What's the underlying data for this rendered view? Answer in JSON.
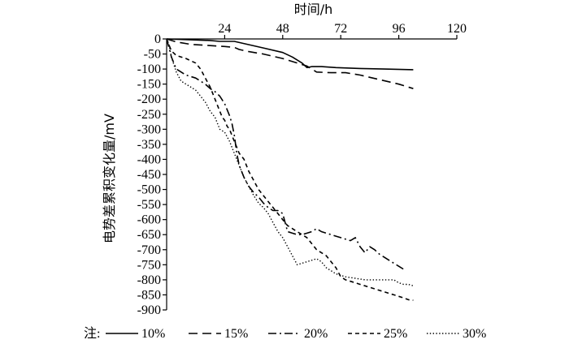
{
  "chart_data": {
    "type": "line",
    "xlabel": "时间/h",
    "ylabel": "电势差累积变化量/mV",
    "xlim": [
      0,
      120
    ],
    "ylim": [
      -900,
      0
    ],
    "x_ticks": [
      24,
      48,
      72,
      96,
      120
    ],
    "y_ticks": [
      0,
      -50,
      -100,
      -150,
      -200,
      -250,
      -300,
      -350,
      -400,
      -450,
      -500,
      -550,
      -600,
      -650,
      -700,
      -750,
      -800,
      -850,
      -900
    ],
    "x_axis_position": "top",
    "grid": false,
    "legend_position": "bottom",
    "legend_prefix": "注:",
    "series": [
      {
        "name": "10%",
        "dash": "solid",
        "x": [
          0,
          18,
          22,
          28,
          40,
          48,
          52,
          56,
          58,
          60,
          64,
          70,
          80,
          90,
          102
        ],
        "y": [
          0,
          -5,
          -8,
          -8,
          -30,
          -45,
          -60,
          -80,
          -95,
          -92,
          -92,
          -95,
          -98,
          -100,
          -102
        ]
      },
      {
        "name": "15%",
        "dash": "longdash",
        "x": [
          0,
          4,
          10,
          18,
          24,
          28,
          30,
          34,
          40,
          48,
          54,
          58,
          62,
          68,
          74,
          80,
          88,
          96,
          102
        ],
        "y": [
          0,
          -10,
          -18,
          -22,
          -25,
          -28,
          -35,
          -42,
          -50,
          -65,
          -80,
          -90,
          -110,
          -112,
          -112,
          -120,
          -135,
          -150,
          -165
        ]
      },
      {
        "name": "20%",
        "dash": "dashdot",
        "x": [
          0,
          2,
          4,
          8,
          12,
          16,
          18,
          20,
          22,
          24,
          26,
          27,
          28,
          29,
          30,
          32,
          34,
          36,
          38,
          40,
          42,
          44,
          46,
          48,
          50,
          52,
          54,
          56,
          58,
          60,
          62,
          64,
          66,
          68,
          70,
          72,
          74,
          76,
          78,
          80,
          82,
          84,
          86,
          88,
          90,
          92,
          94,
          96,
          98
        ],
        "y": [
          0,
          -60,
          -100,
          -120,
          -130,
          -150,
          -165,
          -175,
          -190,
          -215,
          -255,
          -280,
          -320,
          -380,
          -420,
          -460,
          -490,
          -510,
          -525,
          -545,
          -560,
          -570,
          -570,
          -580,
          -640,
          -645,
          -650,
          -650,
          -645,
          -640,
          -630,
          -640,
          -645,
          -650,
          -655,
          -660,
          -665,
          -670,
          -660,
          -690,
          -710,
          -690,
          -700,
          -715,
          -725,
          -735,
          -745,
          -755,
          -765
        ]
      },
      {
        "name": "25%",
        "dash": "shortdash",
        "x": [
          0,
          2,
          4,
          6,
          8,
          12,
          14,
          16,
          18,
          20,
          22,
          23,
          24,
          25,
          26,
          27,
          28,
          29,
          30,
          32,
          34,
          36,
          38,
          40,
          42,
          44,
          46,
          48,
          50,
          54,
          58,
          62,
          66,
          70,
          72,
          74,
          76,
          78,
          80,
          82,
          84,
          86,
          88,
          90,
          92,
          94,
          96,
          98,
          100,
          102
        ],
        "y": [
          0,
          -40,
          -55,
          -60,
          -65,
          -80,
          -100,
          -130,
          -160,
          -200,
          -240,
          -260,
          -270,
          -290,
          -300,
          -320,
          -340,
          -360,
          -380,
          -400,
          -440,
          -470,
          -500,
          -520,
          -540,
          -560,
          -580,
          -600,
          -620,
          -640,
          -660,
          -700,
          -720,
          -760,
          -790,
          -800,
          -805,
          -810,
          -815,
          -820,
          -825,
          -830,
          -835,
          -840,
          -845,
          -850,
          -855,
          -860,
          -866,
          -868
        ]
      },
      {
        "name": "30%",
        "dash": "dotted",
        "x": [
          0,
          1,
          2,
          4,
          6,
          8,
          10,
          12,
          14,
          16,
          18,
          20,
          22,
          24,
          26,
          28,
          30,
          32,
          34,
          36,
          38,
          40,
          42,
          44,
          46,
          48,
          50,
          52,
          54,
          58,
          62,
          64,
          66,
          70,
          74,
          78,
          82,
          86,
          90,
          94,
          96,
          98,
          100,
          102
        ],
        "y": [
          0,
          -20,
          -60,
          -110,
          -140,
          -150,
          -160,
          -170,
          -190,
          -210,
          -240,
          -260,
          -300,
          -310,
          -340,
          -380,
          -420,
          -460,
          -490,
          -520,
          -545,
          -560,
          -580,
          -610,
          -640,
          -660,
          -690,
          -720,
          -750,
          -740,
          -730,
          -740,
          -760,
          -780,
          -790,
          -795,
          -800,
          -800,
          -800,
          -800,
          -810,
          -815,
          -815,
          -820
        ]
      }
    ]
  }
}
